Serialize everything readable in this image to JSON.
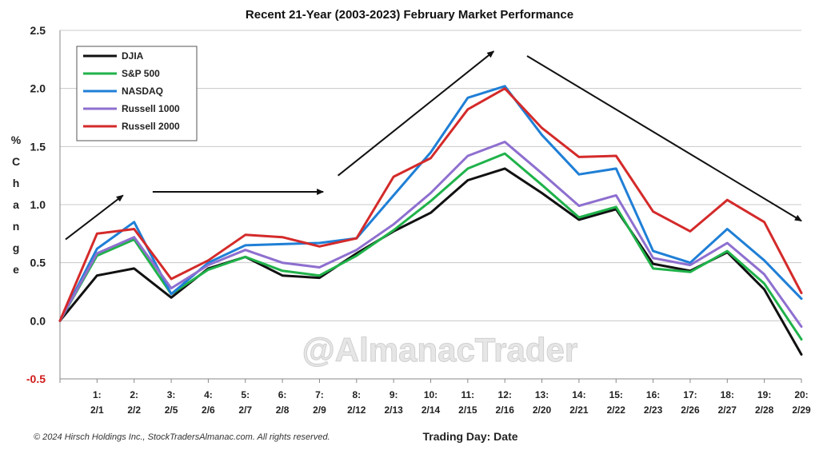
{
  "chart_data": {
    "type": "line",
    "title": "Recent 21-Year (2003-2023) February Market Performance",
    "ylabel": "% Change",
    "xlabel": "Trading Day: Date",
    "ylim": [
      -0.5,
      2.5
    ],
    "yticks": [
      "2.5",
      "2.0",
      "1.5",
      "1.0",
      "0.5",
      "0.0",
      "-0.5"
    ],
    "categories": [
      "",
      "1:\n2/1",
      "2:\n2/2",
      "3:\n2/5",
      "4:\n2/6",
      "5:\n2/7",
      "6:\n2/8",
      "7:\n2/9",
      "8:\n2/12",
      "9:\n2/13",
      "10:\n2/14",
      "11:\n2/15",
      "12:\n2/16",
      "13:\n2/20",
      "14:\n2/21",
      "15:\n2/22",
      "16:\n2/23",
      "17:\n2/26",
      "18:\n2/27",
      "19:\n2/28",
      "20:\n2/29"
    ],
    "grid": "horizontal",
    "legend_position": "top-left",
    "series": [
      {
        "name": "DJIA",
        "color": "#111111",
        "values": [
          0.0,
          0.39,
          0.45,
          0.2,
          0.45,
          0.55,
          0.39,
          0.37,
          0.58,
          0.77,
          0.93,
          1.21,
          1.31,
          1.1,
          0.87,
          0.96,
          0.49,
          0.43,
          0.59,
          0.27,
          -0.29
        ]
      },
      {
        "name": "S&P 500",
        "color": "#1fb24a",
        "values": [
          0.0,
          0.56,
          0.7,
          0.23,
          0.44,
          0.55,
          0.43,
          0.39,
          0.56,
          0.78,
          1.03,
          1.31,
          1.44,
          1.17,
          0.89,
          0.98,
          0.45,
          0.42,
          0.6,
          0.32,
          -0.16
        ]
      },
      {
        "name": "NASDAQ",
        "color": "#1f7fd6",
        "values": [
          0.0,
          0.62,
          0.85,
          0.23,
          0.5,
          0.65,
          0.66,
          0.67,
          0.71,
          1.08,
          1.45,
          1.92,
          2.02,
          1.6,
          1.26,
          1.31,
          0.6,
          0.5,
          0.79,
          0.52,
          0.19
        ]
      },
      {
        "name": "Russell 1000",
        "color": "#8e6fcf",
        "values": [
          0.0,
          0.58,
          0.72,
          0.28,
          0.48,
          0.61,
          0.5,
          0.46,
          0.61,
          0.83,
          1.1,
          1.42,
          1.54,
          1.27,
          0.99,
          1.08,
          0.54,
          0.48,
          0.67,
          0.4,
          -0.05
        ]
      },
      {
        "name": "Russell 2000",
        "color": "#d42a2a",
        "values": [
          0.0,
          0.75,
          0.79,
          0.36,
          0.52,
          0.74,
          0.72,
          0.64,
          0.71,
          1.24,
          1.4,
          1.82,
          2.0,
          1.66,
          1.41,
          1.42,
          0.94,
          0.77,
          1.04,
          0.85,
          0.24
        ]
      }
    ],
    "annotations": {
      "watermark": "@AlmanacTrader",
      "copyright": "© 2024 Hirsch Holdings Inc., StockTradersAlmanac.com. All rights reserved."
    },
    "trend_arrows": [
      {
        "from": [
          0.15,
          0.7
        ],
        "to": [
          1.7,
          1.08
        ]
      },
      {
        "from": [
          2.5,
          1.11
        ],
        "to": [
          7.1,
          1.11
        ]
      },
      {
        "from": [
          7.5,
          1.25
        ],
        "to": [
          11.7,
          2.32
        ]
      },
      {
        "from": [
          12.6,
          2.28
        ],
        "to": [
          20.0,
          0.86
        ]
      }
    ]
  }
}
